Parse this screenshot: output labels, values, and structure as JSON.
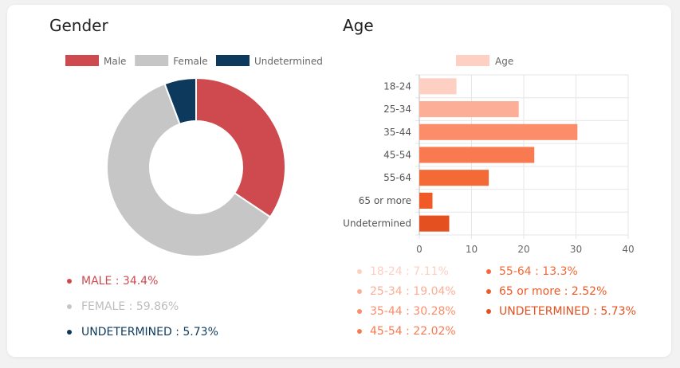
{
  "chart_data": [
    {
      "type": "pie",
      "title": "Gender",
      "legend_position": "top",
      "series": [
        {
          "name": "Male",
          "value": 34.4,
          "color": "#cf4a4f",
          "list_label": "MALE",
          "list_value": "34.4%"
        },
        {
          "name": "Female",
          "value": 59.86,
          "color": "#c6c6c6",
          "list_label": "FEMALE",
          "list_value": "59.86%"
        },
        {
          "name": "Undetermined",
          "value": 5.73,
          "color": "#0d3a5c",
          "list_label": "UNDETERMINED",
          "list_value": "5.73%"
        }
      ]
    },
    {
      "type": "bar",
      "orientation": "horizontal",
      "title": "Age",
      "legend": [
        "Age"
      ],
      "legend_position": "top",
      "grid": true,
      "xlim": [
        0,
        40
      ],
      "x_ticks": [
        "0",
        "10",
        "20",
        "30",
        "40"
      ],
      "categories": [
        "18-24",
        "25-34",
        "35-44",
        "45-54",
        "55-64",
        "65 or more",
        "Undetermined"
      ],
      "values": [
        7.11,
        19.04,
        30.28,
        22.02,
        13.3,
        2.52,
        5.73
      ],
      "colors": [
        "#fdd0c3",
        "#fcae97",
        "#fb8d6a",
        "#f97a50",
        "#f36a36",
        "#ef5a26",
        "#e4501f"
      ],
      "list": [
        {
          "label": "18-24",
          "value": "7.11%"
        },
        {
          "label": "25-34",
          "value": "19.04%"
        },
        {
          "label": "35-44",
          "value": "30.28%"
        },
        {
          "label": "45-54",
          "value": "22.02%"
        },
        {
          "label": "55-64",
          "value": "13.3%"
        },
        {
          "label": "65 or more",
          "value": "2.52%"
        },
        {
          "label": "UNDETERMINED",
          "value": "5.73%"
        }
      ]
    }
  ]
}
